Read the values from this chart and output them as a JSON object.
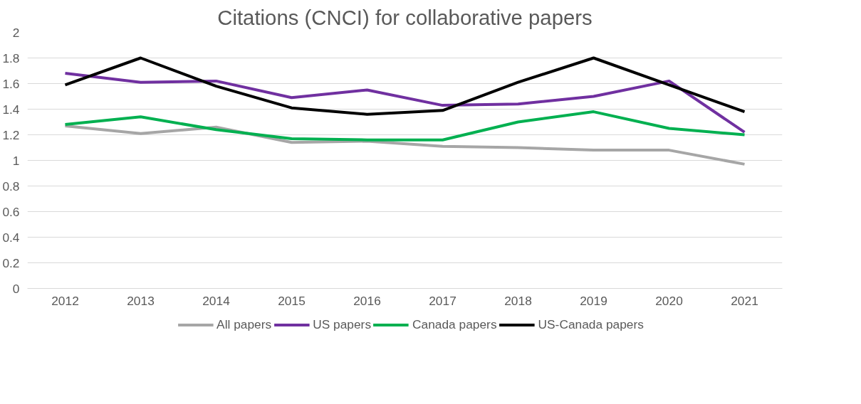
{
  "chart_data": {
    "type": "line",
    "title": "Citations (CNCI) for collaborative papers",
    "categories": [
      "2012",
      "2013",
      "2014",
      "2015",
      "2016",
      "2017",
      "2018",
      "2019",
      "2020",
      "2021"
    ],
    "series": [
      {
        "name": "All papers",
        "color": "#a6a6a6",
        "values": [
          1.27,
          1.21,
          1.26,
          1.14,
          1.15,
          1.11,
          1.1,
          1.08,
          1.08,
          0.97
        ]
      },
      {
        "name": "US papers",
        "color": "#7030a0",
        "values": [
          1.68,
          1.61,
          1.62,
          1.49,
          1.55,
          1.43,
          1.44,
          1.5,
          1.62,
          1.22
        ]
      },
      {
        "name": "Canada papers",
        "color": "#00b050",
        "values": [
          1.28,
          1.34,
          1.24,
          1.17,
          1.16,
          1.16,
          1.3,
          1.38,
          1.25,
          1.2
        ]
      },
      {
        "name": "US-Canada papers",
        "color": "#000000",
        "values": [
          1.59,
          1.8,
          1.58,
          1.41,
          1.36,
          1.39,
          1.61,
          1.8,
          1.59,
          1.38
        ]
      }
    ],
    "ylim": [
      0,
      2
    ],
    "yticks": [
      0,
      0.2,
      0.4,
      0.6,
      0.8,
      1,
      1.2,
      1.4,
      1.6,
      1.8,
      2
    ],
    "grid": "y",
    "legend": "bottom",
    "marker": "none",
    "line_style": "solid"
  }
}
